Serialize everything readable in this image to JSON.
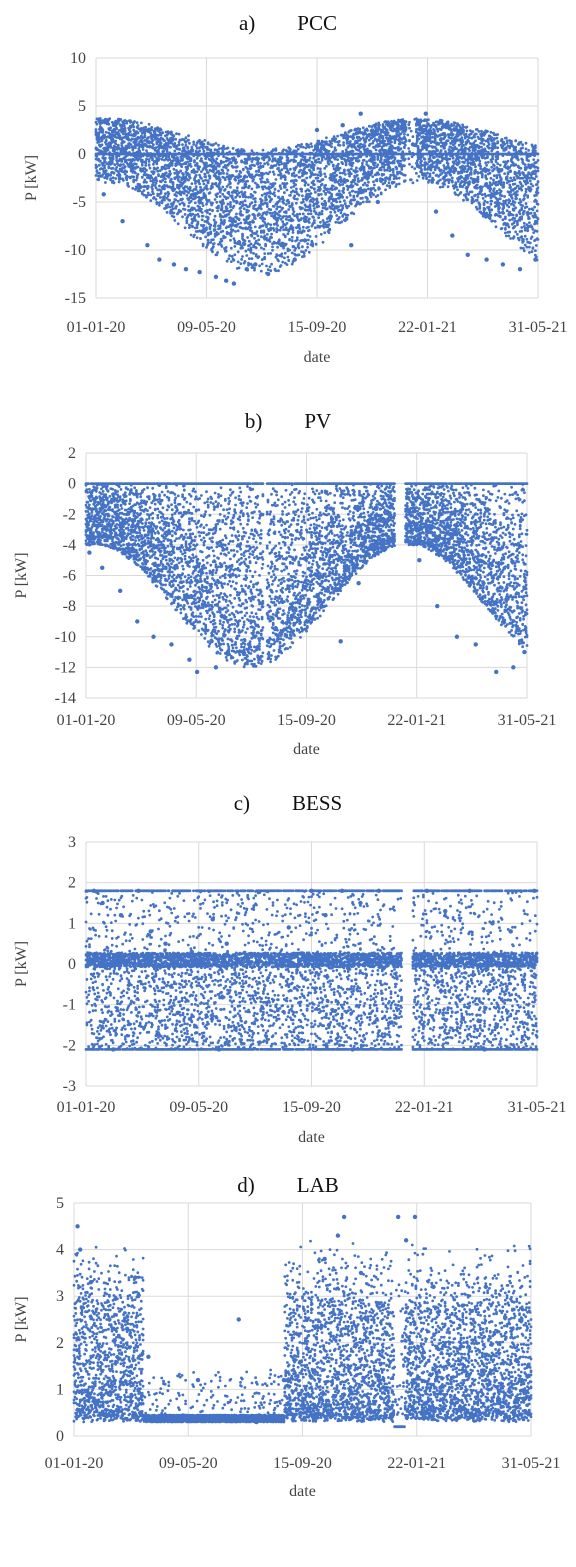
{
  "colors": {
    "series": "#4472c4",
    "grid": "#d9d9d9",
    "text": "#444444"
  },
  "chart_data": [
    {
      "type": "scatter",
      "panel": "a)",
      "title": "PCC",
      "xlabel": "date",
      "ylabel": "P [kW]",
      "xlim": [
        "2020-01-01",
        "2021-05-31"
      ],
      "xticks": [
        "01-01-20",
        "09-05-20",
        "15-09-20",
        "22-01-21",
        "31-05-21"
      ],
      "ylim": [
        -15,
        10
      ],
      "yticks": [
        -15,
        -10,
        -5,
        0,
        5,
        10
      ],
      "grid": true,
      "legend": "none",
      "series": [
        {
          "points": [
            [
              "2020-01-05",
              3.5
            ],
            [
              "2020-01-10",
              -4.2
            ],
            [
              "2020-01-20",
              1.5
            ],
            [
              "2020-02-01",
              -7.0
            ],
            [
              "2020-02-15",
              2.0
            ],
            [
              "2020-03-01",
              -9.5
            ],
            [
              "2020-03-15",
              -11.0
            ],
            [
              "2020-04-01",
              -11.5
            ],
            [
              "2020-04-15",
              -12.0
            ],
            [
              "2020-05-01",
              -12.3
            ],
            [
              "2020-05-20",
              -12.8
            ],
            [
              "2020-06-01",
              -13.2
            ],
            [
              "2020-06-10",
              -13.5
            ],
            [
              "2020-06-25",
              -12.0
            ],
            [
              "2020-07-05",
              -11.5
            ],
            [
              "2020-07-20",
              -12.5
            ],
            [
              "2020-08-05",
              -9.5
            ],
            [
              "2020-08-20",
              -11.0
            ],
            [
              "2020-09-01",
              -9.0
            ],
            [
              "2020-09-15",
              2.5
            ],
            [
              "2020-10-01",
              -6.5
            ],
            [
              "2020-10-15",
              3.0
            ],
            [
              "2020-10-25",
              -9.5
            ],
            [
              "2020-11-05",
              4.2
            ],
            [
              "2020-11-25",
              -5.0
            ],
            [
              "2020-12-10",
              2.8
            ],
            [
              "2021-01-05",
              1.0
            ],
            [
              "2021-01-20",
              4.2
            ],
            [
              "2021-02-01",
              -6.0
            ],
            [
              "2021-02-20",
              -8.5
            ],
            [
              "2021-03-10",
              -10.5
            ],
            [
              "2021-04-01",
              -11.0
            ],
            [
              "2021-04-20",
              -11.5
            ],
            [
              "2021-05-10",
              -12.0
            ],
            [
              "2021-05-28",
              -11.0
            ]
          ]
        }
      ]
    },
    {
      "type": "scatter",
      "panel": "b)",
      "title": "PV",
      "xlabel": "date",
      "ylabel": "P [kW]",
      "xlim": [
        "2020-01-01",
        "2021-05-31"
      ],
      "xticks": [
        "01-01-20",
        "09-05-20",
        "15-09-20",
        "22-01-21",
        "31-05-21"
      ],
      "ylim": [
        -14,
        2
      ],
      "yticks": [
        -14,
        -12,
        -10,
        -8,
        -6,
        -4,
        -2,
        0,
        2
      ],
      "grid": true,
      "legend": "none",
      "series": [
        {
          "points": [
            [
              "2020-01-05",
              -4.5
            ],
            [
              "2020-01-20",
              -5.5
            ],
            [
              "2020-02-10",
              -7.0
            ],
            [
              "2020-03-01",
              -9.0
            ],
            [
              "2020-03-20",
              -10.0
            ],
            [
              "2020-04-10",
              -10.5
            ],
            [
              "2020-05-01",
              -11.5
            ],
            [
              "2020-05-10",
              -12.3
            ],
            [
              "2020-06-01",
              -12.0
            ],
            [
              "2020-06-15",
              -11.0
            ],
            [
              "2020-07-10",
              -10.5
            ],
            [
              "2020-08-01",
              -10.3
            ],
            [
              "2020-08-25",
              -9.0
            ],
            [
              "2020-09-20",
              -6.0
            ],
            [
              "2020-10-10",
              -7.0
            ],
            [
              "2020-10-25",
              -10.3
            ],
            [
              "2020-11-15",
              -6.5
            ],
            [
              "2020-12-20",
              -3.5
            ],
            [
              "2021-01-25",
              -5.0
            ],
            [
              "2021-02-15",
              -8.0
            ],
            [
              "2021-03-10",
              -10.0
            ],
            [
              "2021-04-01",
              -10.5
            ],
            [
              "2021-04-25",
              -12.3
            ],
            [
              "2021-05-15",
              -12.0
            ],
            [
              "2021-05-28",
              -11.0
            ]
          ]
        }
      ]
    },
    {
      "type": "scatter",
      "panel": "c)",
      "title": "BESS",
      "xlabel": "date",
      "ylabel": "P [kW]",
      "xlim": [
        "2020-01-01",
        "2021-05-31"
      ],
      "xticks": [
        "01-01-20",
        "09-05-20",
        "15-09-20",
        "22-01-21",
        "31-05-21"
      ],
      "ylim": [
        -3,
        3
      ],
      "yticks": [
        -3,
        -2,
        -1,
        0,
        1,
        2,
        3
      ],
      "grid": true,
      "legend": "none",
      "series": [
        {
          "points": [
            [
              "2020-01-10",
              1.8
            ],
            [
              "2020-01-20",
              1.5
            ],
            [
              "2020-02-10",
              1.2
            ],
            [
              "2020-03-01",
              1.8
            ],
            [
              "2020-03-15",
              0.8
            ],
            [
              "2020-04-01",
              0.5
            ],
            [
              "2020-05-01",
              0.3
            ],
            [
              "2020-05-25",
              1.1
            ],
            [
              "2020-06-10",
              0.5
            ],
            [
              "2020-08-20",
              0.9
            ],
            [
              "2020-09-15",
              1.8
            ],
            [
              "2020-10-01",
              1.2
            ],
            [
              "2020-10-20",
              1.8
            ],
            [
              "2020-11-10",
              1.5
            ],
            [
              "2020-12-01",
              1.8
            ],
            [
              "2021-01-25",
              1.8
            ],
            [
              "2021-02-15",
              1.3
            ],
            [
              "2021-03-15",
              1.8
            ],
            [
              "2021-04-10",
              1.0
            ],
            [
              "2021-05-01",
              0.8
            ],
            [
              "2021-05-28",
              1.8
            ],
            [
              "2020-02-01",
              -2.1
            ],
            [
              "2020-06-01",
              -2.1
            ],
            [
              "2020-11-01",
              -2.1
            ],
            [
              "2021-04-01",
              -2.1
            ],
            [
              "2020-04-15",
              -1.2
            ],
            [
              "2020-10-05",
              -1.5
            ],
            [
              "2021-03-01",
              -0.8
            ]
          ]
        }
      ]
    },
    {
      "type": "scatter",
      "panel": "d)",
      "title": "LAB",
      "xlabel": "date",
      "ylabel": "P [kW]",
      "xlim": [
        "2020-01-01",
        "2021-05-31"
      ],
      "xticks": [
        "01-01-20",
        "09-05-20",
        "15-09-20",
        "22-01-21",
        "31-05-21"
      ],
      "ylim": [
        0,
        5
      ],
      "yticks": [
        0,
        1,
        2,
        3,
        4,
        5
      ],
      "grid": true,
      "legend": "none",
      "series": [
        {
          "points": [
            [
              "2020-01-05",
              4.5
            ],
            [
              "2020-01-08",
              4.0
            ],
            [
              "2020-01-20",
              3.3
            ],
            [
              "2020-02-10",
              2.5
            ],
            [
              "2020-03-01",
              2.3
            ],
            [
              "2020-03-10",
              3.4
            ],
            [
              "2020-03-25",
              1.7
            ],
            [
              "2020-05-20",
              1.2
            ],
            [
              "2020-07-05",
              2.5
            ],
            [
              "2020-07-25",
              0.3
            ],
            [
              "2020-08-25",
              1.2
            ],
            [
              "2020-09-20",
              2.5
            ],
            [
              "2020-10-10",
              3.8
            ],
            [
              "2020-10-25",
              4.3
            ],
            [
              "2020-11-01",
              4.7
            ],
            [
              "2020-11-20",
              3.5
            ],
            [
              "2020-12-15",
              2.8
            ],
            [
              "2021-01-01",
              4.7
            ],
            [
              "2021-01-10",
              4.2
            ],
            [
              "2021-01-20",
              4.7
            ],
            [
              "2021-02-10",
              3.2
            ],
            [
              "2021-03-15",
              2.8
            ],
            [
              "2021-04-10",
              3.2
            ],
            [
              "2021-05-10",
              2.3
            ],
            [
              "2021-05-28",
              1.5
            ]
          ]
        }
      ]
    }
  ]
}
